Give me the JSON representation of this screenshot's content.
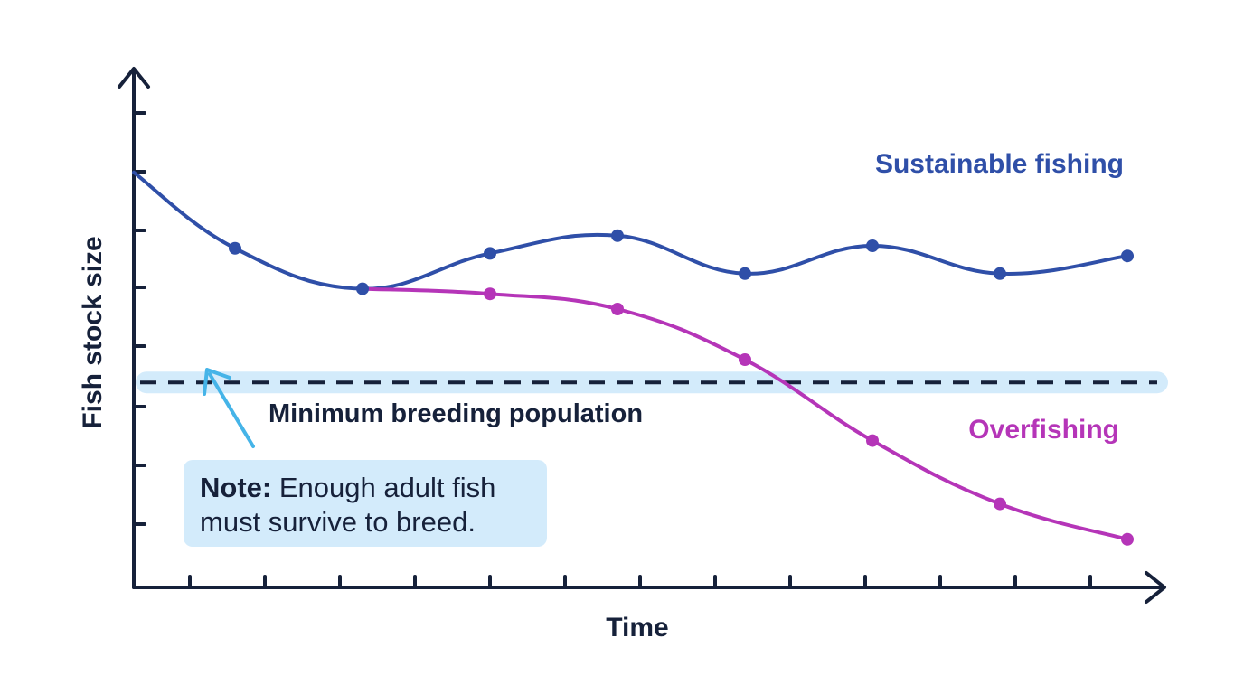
{
  "chart_data": {
    "type": "line",
    "xlabel": "Time",
    "ylabel": "Fish stock size",
    "x": [
      0,
      1,
      2,
      3,
      4,
      5,
      6,
      7,
      8
    ],
    "xlim": [
      -0.75,
      8.1
    ],
    "ylim": [
      0,
      10
    ],
    "series": [
      {
        "name": "Sustainable fishing",
        "color": "#2f4fa8",
        "start_value": 8.2,
        "points": [
          [
            0,
            6.7
          ],
          [
            1,
            5.9
          ],
          [
            2,
            6.6
          ],
          [
            3,
            6.95
          ],
          [
            4,
            6.2
          ],
          [
            5,
            6.75
          ],
          [
            6,
            6.2
          ],
          [
            7,
            6.55
          ]
        ]
      },
      {
        "name": "Overfishing",
        "color": "#b535b8",
        "points": [
          [
            1,
            5.9
          ],
          [
            2,
            5.8
          ],
          [
            3,
            5.5
          ],
          [
            4,
            4.5
          ],
          [
            5,
            2.9
          ],
          [
            6,
            1.65
          ],
          [
            7,
            0.95
          ]
        ]
      }
    ],
    "threshold": {
      "label": "Minimum breeding population",
      "value": 4.05,
      "color": "#16213a",
      "highlight_color": "#d3ebfb"
    },
    "annotation": {
      "bold": "Note:",
      "line1": " Enough adult fish",
      "line2": "must survive to breed.",
      "arrow_color": "#45b4e8",
      "box_color": "#d3ebfb"
    },
    "grid": false,
    "legend": "inline labels at line ends",
    "axis_color": "#16213a"
  }
}
